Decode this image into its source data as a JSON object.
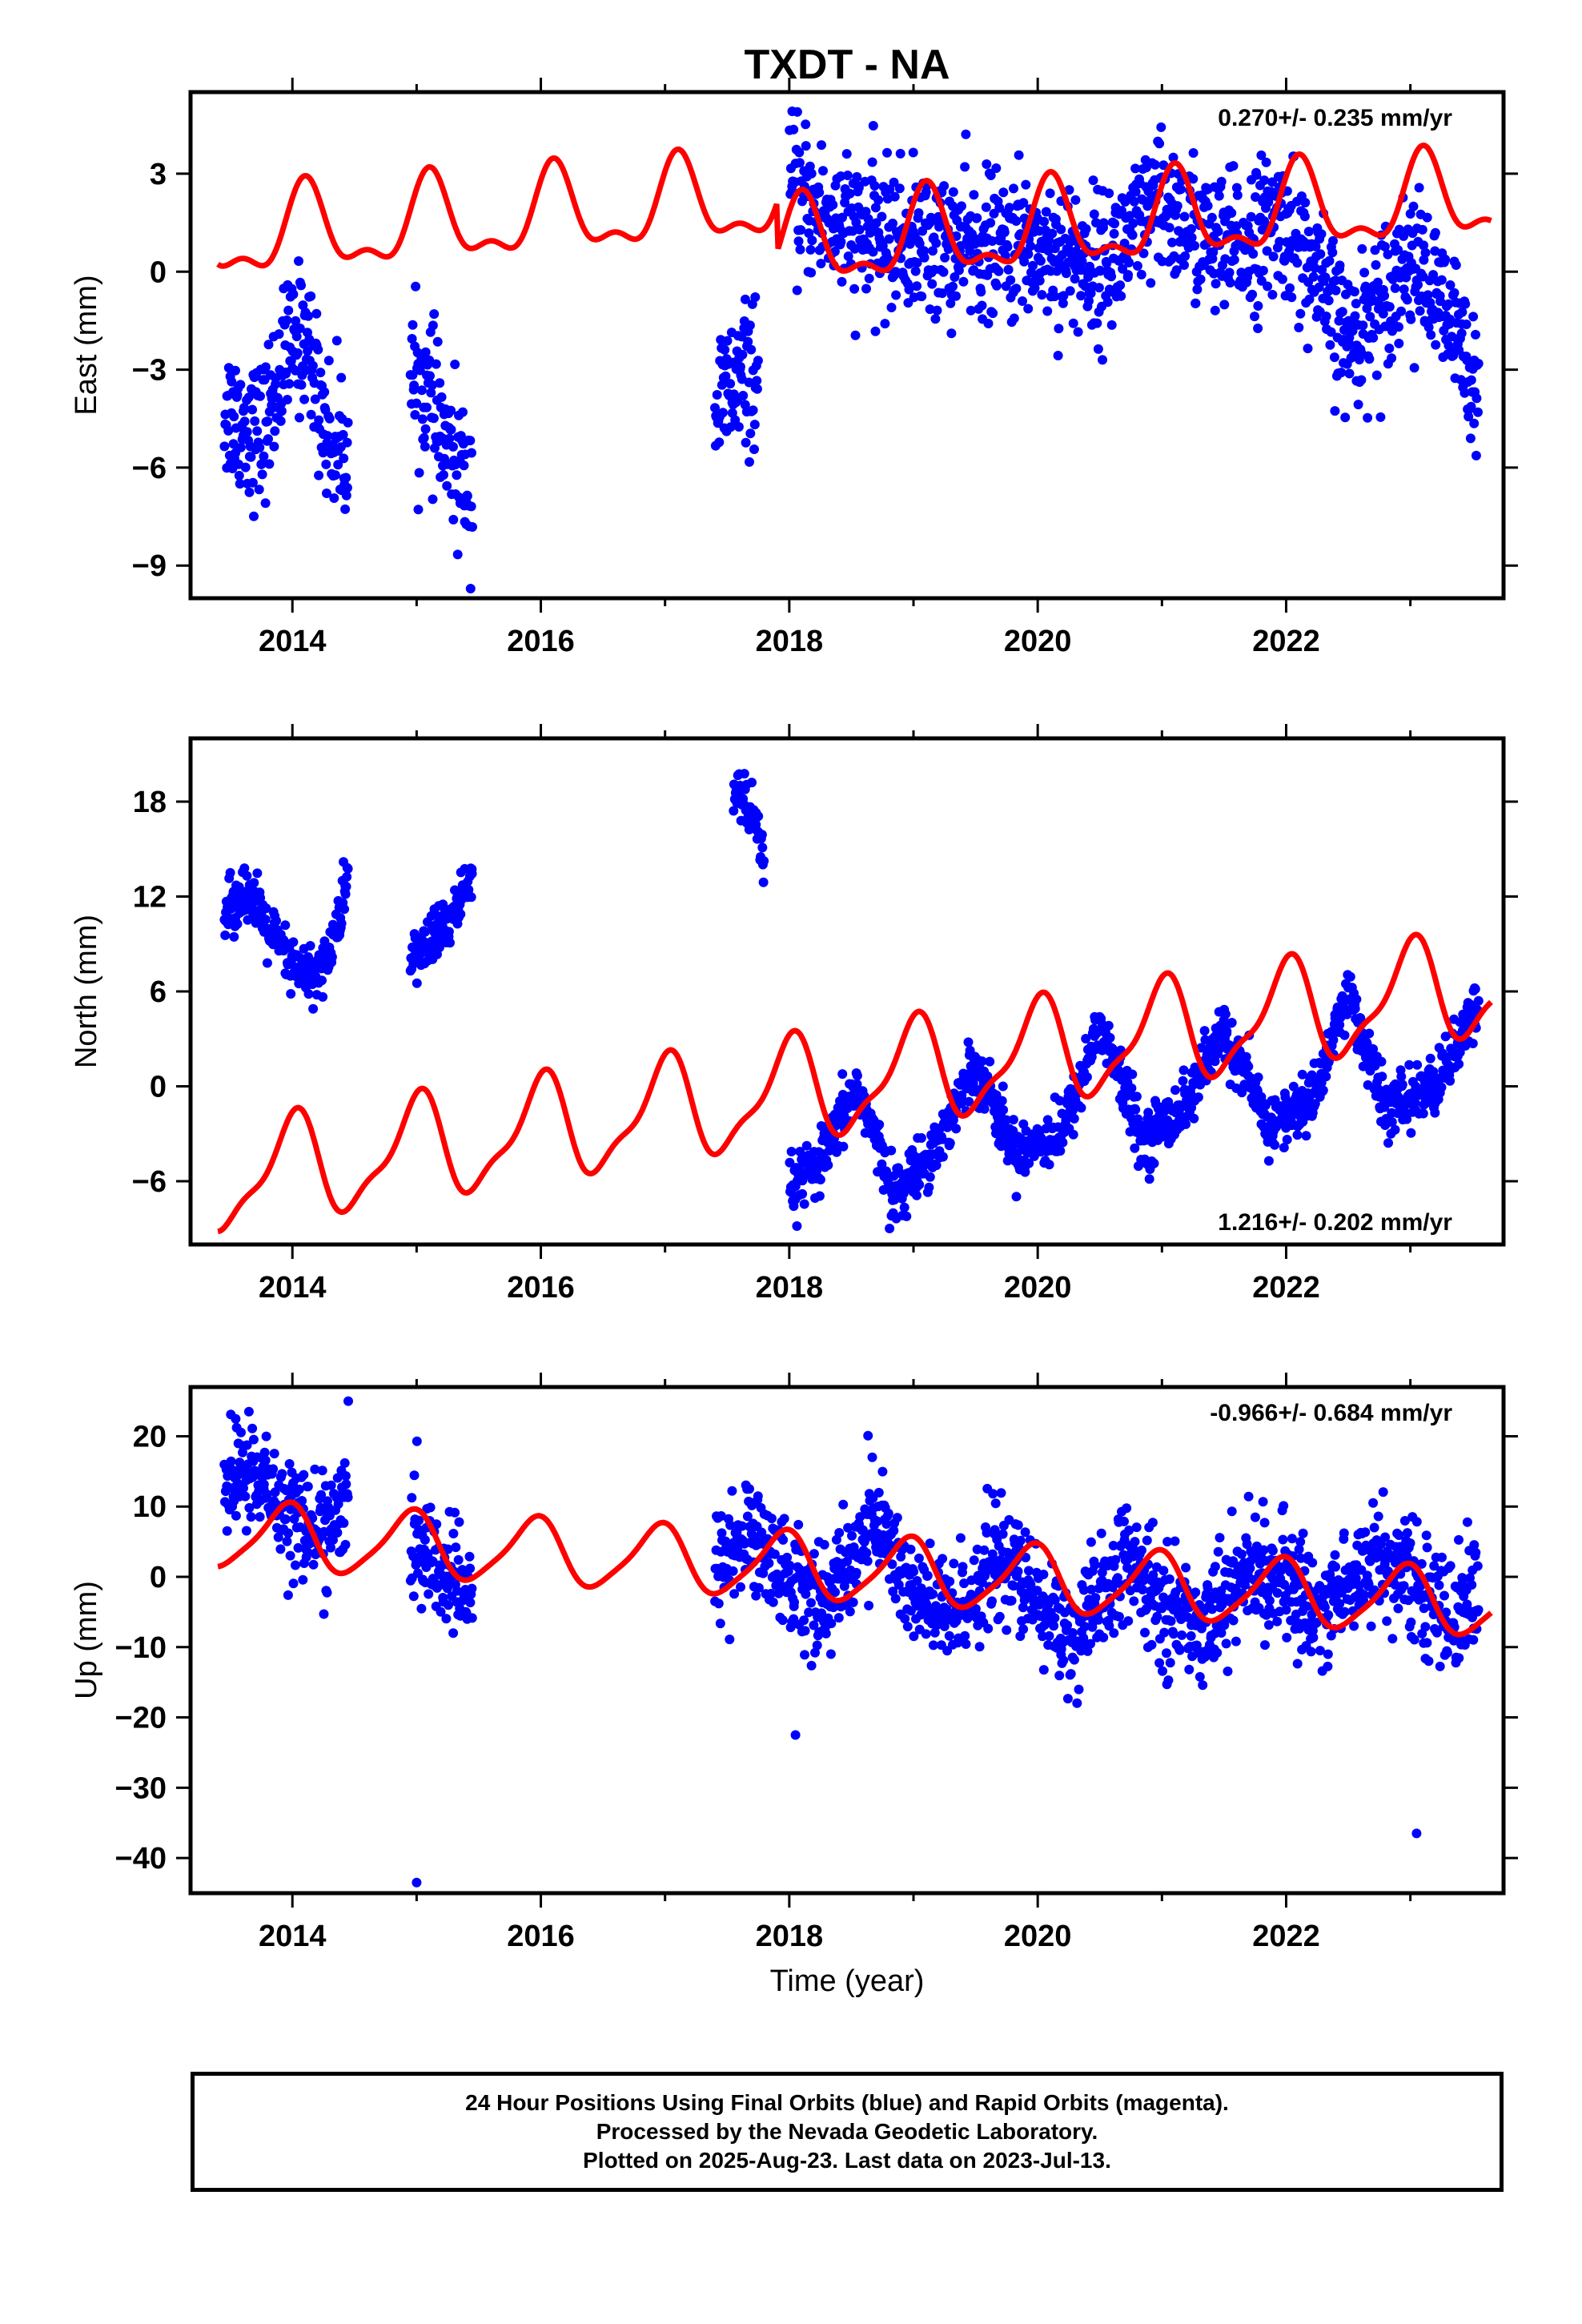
{
  "title": "TXDT - NA",
  "xlabel": "Time (year)",
  "colors": {
    "final_orbits": "#0000ff",
    "model": "#ff0000",
    "frame": "#000000"
  },
  "footer": {
    "line1": "24 Hour Positions Using Final Orbits (blue) and Rapid Orbits (magenta).",
    "line2": "Processed by the Nevada Geodetic Laboratory.",
    "line3": "Plotted on 2025-Aug-23. Last data on 2023-Jul-13."
  },
  "chart_data": [
    {
      "type": "scatter",
      "component": "east",
      "ylabel": "East (mm)",
      "rate_text": "0.270+/- 0.235 mm/yr",
      "rate_position": "top-right",
      "xlim": [
        2013.18,
        2023.75
      ],
      "ylim": [
        -10,
        5.5
      ],
      "xticks": [
        2014,
        2016,
        2018,
        2020,
        2022
      ],
      "yticks": [
        -9,
        -6,
        -3,
        0,
        3
      ],
      "data_gaps": [
        [
          2014.6,
          2014.9
        ],
        [
          2015.55,
          2017.35
        ],
        [
          2017.85,
          2017.95
        ]
      ],
      "segments": [
        {
          "x": [
            2013.45,
            2013.75,
            2013.95,
            2014.1,
            2014.3,
            2014.45
          ],
          "y": [
            -4.2,
            -5.0,
            -2.6,
            -1.8,
            -5.2,
            -5.4
          ]
        },
        {
          "x": [
            2014.95,
            2015.1,
            2015.25,
            2015.45
          ],
          "y": [
            -3.2,
            -3.8,
            -5.6,
            -6.6
          ]
        },
        {
          "x": [
            2017.4,
            2017.55,
            2017.75
          ],
          "y": [
            -4.2,
            -3.5,
            -3.0
          ]
        },
        {
          "x": [
            2018.0,
            2018.5,
            2019.0,
            2019.5,
            2020.0,
            2020.5,
            2021.0,
            2021.5,
            2022.0,
            2022.5,
            2023.0,
            2023.55
          ],
          "y": [
            2.4,
            1.2,
            0.9,
            0.7,
            0.8,
            0.1,
            2.0,
            0.6,
            1.6,
            -2.2,
            0.5,
            -3.2
          ]
        }
      ],
      "scatter_spread": 1.1,
      "model": {
        "x0": 2013.4,
        "x1": 2023.65,
        "offsets": [
          [
            2013.4,
            1.0
          ],
          [
            2017.9,
            -0.5
          ]
        ],
        "rate": 0.27,
        "annual_amp": 1.2,
        "annual_phase": 0.9,
        "semi_amp": 0.55,
        "semi_phase": 0.3
      }
    },
    {
      "type": "scatter",
      "component": "north",
      "ylabel": "North (mm)",
      "rate_text": "1.216+/- 0.202 mm/yr",
      "rate_position": "bottom-right",
      "xlim": [
        2013.18,
        2023.75
      ],
      "ylim": [
        -10,
        22
      ],
      "xticks": [
        2014,
        2016,
        2018,
        2020,
        2022
      ],
      "yticks": [
        -6,
        0,
        6,
        12,
        18
      ],
      "segments": [
        {
          "x": [
            2013.45,
            2013.6,
            2013.8,
            2014.0,
            2014.2,
            2014.35,
            2014.45
          ],
          "y": [
            10.5,
            12.5,
            10.0,
            7.5,
            7.0,
            9.5,
            13.5
          ]
        },
        {
          "x": [
            2014.95,
            2015.15,
            2015.35,
            2015.45
          ],
          "y": [
            8.0,
            9.5,
            11.5,
            13.5
          ]
        },
        {
          "x": [
            2017.55,
            2017.7,
            2017.8
          ],
          "y": [
            19.0,
            17.0,
            14.0
          ]
        },
        {
          "x": [
            2018.0,
            2018.25,
            2018.55,
            2018.85,
            2019.2,
            2019.5,
            2019.8,
            2020.2,
            2020.5,
            2020.85,
            2021.2,
            2021.5,
            2021.85,
            2022.2,
            2022.5,
            2022.8,
            2023.2,
            2023.55
          ],
          "y": [
            -6.5,
            -5.0,
            0.0,
            -7.0,
            -3.5,
            1.5,
            -4.0,
            -3.0,
            4.0,
            -3.5,
            -1.0,
            3.5,
            -2.5,
            -1.0,
            6.0,
            -1.5,
            0.0,
            5.0
          ]
        }
      ],
      "scatter_spread": 0.9,
      "model": {
        "x0": 2013.4,
        "x1": 2023.65,
        "offsets": [
          [
            2013.4,
            -6.0
          ]
        ],
        "rate": 1.216,
        "annual_amp": 3.1,
        "annual_phase": 1.6,
        "semi_amp": 1.0,
        "semi_phase": 0.6
      }
    },
    {
      "type": "scatter",
      "component": "up",
      "ylabel": "Up (mm)",
      "rate_text": "-0.966+/- 0.684 mm/yr",
      "rate_position": "top-right",
      "xlim": [
        2013.18,
        2023.75
      ],
      "ylim": [
        -45,
        27
      ],
      "xticks": [
        2014,
        2016,
        2018,
        2020,
        2022
      ],
      "yticks": [
        -40,
        -30,
        -20,
        -10,
        0,
        10,
        20
      ],
      "segments": [
        {
          "x": [
            2013.45,
            2013.7,
            2013.95,
            2014.2,
            2014.45
          ],
          "y": [
            14.0,
            14.5,
            10.0,
            6.0,
            10.0
          ]
        },
        {
          "x": [
            2014.95,
            2015.2,
            2015.45
          ],
          "y": [
            5.0,
            1.0,
            -4.0
          ]
        },
        {
          "x": [
            2017.4,
            2017.7,
            2018.0,
            2018.3,
            2018.7,
            2019.0,
            2019.3,
            2019.7,
            2020.0,
            2020.3,
            2020.7,
            2021.0,
            2021.3,
            2021.7,
            2022.0,
            2022.3,
            2022.7,
            2023.0,
            2023.3,
            2023.55
          ],
          "y": [
            2.0,
            6.0,
            0.0,
            -4.0,
            9.0,
            -3.0,
            -6.0,
            3.0,
            -4.0,
            -9.0,
            2.0,
            -4.0,
            -7.0,
            1.0,
            -1.0,
            -5.0,
            3.0,
            0.0,
            -6.0,
            -2.0
          ]
        }
      ],
      "scatter_spread": 4.0,
      "outliers": [
        {
          "x": 2015.0,
          "y": -43.5
        },
        {
          "x": 2018.05,
          "y": -22.5
        },
        {
          "x": 2023.05,
          "y": -36.5
        },
        {
          "x": 2013.65,
          "y": 23.5
        },
        {
          "x": 2014.45,
          "y": 25.0
        }
      ],
      "model": {
        "x0": 2013.4,
        "x1": 2023.65,
        "offsets": [
          [
            2013.4,
            6.0
          ]
        ],
        "rate": -0.966,
        "annual_amp": 4.6,
        "annual_phase": 1.9,
        "semi_amp": 0.9,
        "semi_phase": 1.1
      }
    }
  ]
}
